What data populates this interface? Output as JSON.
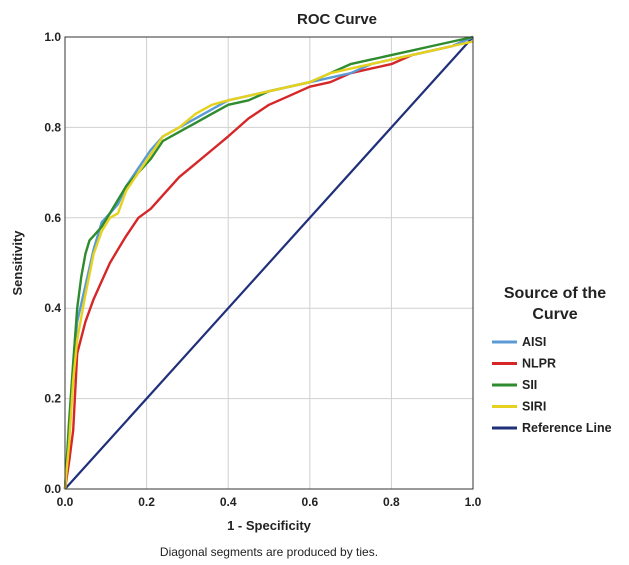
{
  "chart_data": {
    "type": "line",
    "title": "ROC Curve",
    "xlabel": "1 - Specificity",
    "ylabel": "Sensitivity",
    "footnote": "Diagonal segments are produced by ties.",
    "xlim": [
      0,
      1
    ],
    "ylim": [
      0,
      1
    ],
    "xticks": [
      "0.0",
      "0.2",
      "0.4",
      "0.6",
      "0.8",
      "1.0"
    ],
    "yticks": [
      "0.0",
      "0.2",
      "0.4",
      "0.6",
      "0.8",
      "1.0"
    ],
    "grid": true,
    "legend": {
      "title": "Source of the Curve",
      "title_lines": [
        "Source of the",
        "Curve"
      ],
      "placement": "right"
    },
    "series": [
      {
        "name": "AISI",
        "color": "#5b9bd5",
        "x": [
          0,
          0.01,
          0.02,
          0.03,
          0.05,
          0.07,
          0.09,
          0.11,
          0.13,
          0.15,
          0.18,
          0.21,
          0.24,
          0.28,
          0.32,
          0.36,
          0.4,
          0.45,
          0.5,
          0.55,
          0.6,
          0.65,
          0.7,
          0.75,
          0.8,
          0.85,
          0.9,
          0.95,
          1.0
        ],
        "y": [
          0,
          0.12,
          0.27,
          0.37,
          0.45,
          0.53,
          0.59,
          0.61,
          0.63,
          0.67,
          0.71,
          0.75,
          0.78,
          0.8,
          0.82,
          0.84,
          0.86,
          0.87,
          0.88,
          0.89,
          0.9,
          0.91,
          0.92,
          0.94,
          0.95,
          0.96,
          0.97,
          0.98,
          1.0
        ]
      },
      {
        "name": "NLPR",
        "color": "#d62728",
        "x": [
          0,
          0.01,
          0.02,
          0.03,
          0.05,
          0.07,
          0.09,
          0.11,
          0.13,
          0.15,
          0.18,
          0.21,
          0.24,
          0.28,
          0.32,
          0.36,
          0.4,
          0.45,
          0.5,
          0.55,
          0.6,
          0.65,
          0.7,
          0.75,
          0.8,
          0.85,
          0.9,
          0.95,
          1.0
        ],
        "y": [
          0,
          0.06,
          0.13,
          0.3,
          0.37,
          0.42,
          0.46,
          0.5,
          0.53,
          0.56,
          0.6,
          0.62,
          0.65,
          0.69,
          0.72,
          0.75,
          0.78,
          0.82,
          0.85,
          0.87,
          0.89,
          0.9,
          0.92,
          0.93,
          0.94,
          0.96,
          0.97,
          0.98,
          1.0
        ]
      },
      {
        "name": "SII",
        "color": "#2e8b2e",
        "x": [
          0,
          0.01,
          0.02,
          0.03,
          0.04,
          0.05,
          0.06,
          0.07,
          0.09,
          0.11,
          0.13,
          0.15,
          0.18,
          0.21,
          0.24,
          0.28,
          0.32,
          0.36,
          0.4,
          0.45,
          0.5,
          0.55,
          0.6,
          0.65,
          0.7,
          0.75,
          0.8,
          0.85,
          0.9,
          0.95,
          1.0
        ],
        "y": [
          0,
          0.15,
          0.28,
          0.4,
          0.47,
          0.52,
          0.55,
          0.56,
          0.58,
          0.61,
          0.64,
          0.67,
          0.7,
          0.73,
          0.77,
          0.79,
          0.81,
          0.83,
          0.85,
          0.86,
          0.88,
          0.89,
          0.9,
          0.92,
          0.94,
          0.95,
          0.96,
          0.97,
          0.98,
          0.99,
          1.0
        ]
      },
      {
        "name": "SIRI",
        "color": "#e6d21e",
        "x": [
          0,
          0.01,
          0.02,
          0.03,
          0.05,
          0.07,
          0.09,
          0.11,
          0.13,
          0.15,
          0.18,
          0.21,
          0.24,
          0.28,
          0.32,
          0.36,
          0.4,
          0.45,
          0.5,
          0.55,
          0.6,
          0.65,
          0.7,
          0.75,
          0.8,
          0.85,
          0.9,
          0.95,
          1.0
        ],
        "y": [
          0,
          0.1,
          0.24,
          0.33,
          0.43,
          0.52,
          0.57,
          0.6,
          0.61,
          0.66,
          0.7,
          0.74,
          0.78,
          0.8,
          0.83,
          0.85,
          0.86,
          0.87,
          0.88,
          0.89,
          0.9,
          0.92,
          0.93,
          0.94,
          0.95,
          0.96,
          0.97,
          0.98,
          0.99
        ]
      },
      {
        "name": "Reference Line",
        "color": "#1f2f7a",
        "x": [
          0,
          1
        ],
        "y": [
          0,
          1
        ]
      }
    ]
  }
}
